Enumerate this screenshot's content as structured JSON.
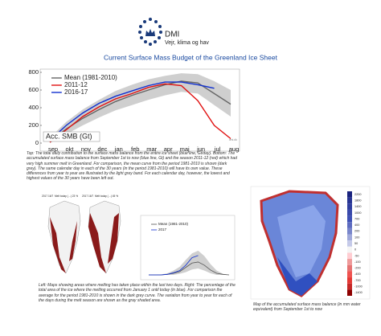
{
  "header": {
    "logo_text": "DMI",
    "tagline": "Vejr, klima og hav",
    "title": "Current Surface Mass Budget of the Greenland Ice Sheet"
  },
  "chart_data": [
    {
      "type": "line",
      "y_label": "Acc. SMB (Gt)",
      "watermark": "dmi.dk",
      "categories": [
        "sep",
        "okt",
        "nov",
        "dec",
        "jan",
        "feb",
        "mar",
        "apr",
        "maj",
        "jun",
        "jul",
        "aug"
      ],
      "ylim": [
        0,
        800
      ],
      "yticks": [
        0,
        200,
        400,
        600,
        800
      ],
      "band": {
        "color": "#cfcfcf",
        "low": [
          0,
          100,
          200,
          290,
          370,
          430,
          490,
          540,
          580,
          560,
          430,
          300
        ],
        "high": [
          60,
          240,
          380,
          490,
          590,
          660,
          720,
          760,
          790,
          780,
          700,
          600
        ]
      },
      "series": [
        {
          "name": "Mean (1981-2010)",
          "color": "#666666",
          "values": [
            20,
            160,
            280,
            380,
            470,
            540,
            600,
            660,
            700,
            680,
            560,
            440
          ]
        },
        {
          "name": "2011-12",
          "color": "#e01010",
          "values": [
            10,
            150,
            300,
            410,
            500,
            560,
            630,
            670,
            650,
            480,
            200,
            50
          ]
        },
        {
          "name": "2016-17",
          "color": "#1030d0",
          "values": [
            30,
            200,
            340,
            450,
            530,
            590,
            650,
            690,
            690,
            660,
            620,
            null
          ]
        }
      ]
    },
    {
      "type": "line",
      "ylim": [
        0,
        100
      ],
      "band": {
        "color": "#cfcfcf",
        "low": [
          0,
          0,
          0,
          0,
          0,
          2,
          5,
          10,
          12,
          8,
          3,
          0,
          0,
          0
        ],
        "high": [
          0,
          0,
          1,
          3,
          8,
          15,
          28,
          40,
          45,
          35,
          20,
          8,
          2,
          0
        ]
      },
      "series": [
        {
          "name": "Mean (1981-2010)",
          "color": "#555555",
          "values": [
            0,
            0,
            0,
            1,
            3,
            6,
            14,
            22,
            24,
            18,
            9,
            3,
            1,
            0
          ]
        },
        {
          "name": "2017",
          "color": "#1030d0",
          "values": [
            0,
            0,
            0,
            1,
            4,
            8,
            18,
            32,
            36,
            null,
            null,
            null,
            null,
            null
          ]
        }
      ]
    }
  ],
  "captions": {
    "top": "Top: The total daily contribution to the surface mass balance from the entire ice sheet (blue line, Gt/day). Bottom: The accumulated surface mass balance from September 1st to now (blue line, Gt) and the season 2011-12 (red) which had very high summer melt in Greenland. For comparison, the mean curve from the period 1981-2010 is shown (dark grey). The same calendar day in each of the 30 years (in the period 1981-2010) will have its own value. These differences from year to year are illustrated by the light grey band. For each calendar day, however, the lowest and highest values of the 30 years have been left out.",
    "melt": "Left: Maps showing areas where melting has taken place within the last two days. Right: The percentage of the total area of the ice where the melting occurred from January 1 until today (in blue). For comparison the average for the period 1981-2010 is shown in the dark grey curve. The variation from year to year for each of the days during the melt season are shown as the gray shaded area.",
    "map": "Map of the accumulated surface mass balance (in mm water equivalent) from September 1st to now"
  },
  "melt_maps": [
    {
      "date": "2017 16/7",
      "label": "Melt today (…) 23 %"
    },
    {
      "date": "2017 16/7",
      "label": "Melt today (…) 45 %"
    }
  ],
  "smb_map": {
    "colorbar_labels": [
      "2200",
      "1800",
      "1400",
      "1000",
      "700",
      "400",
      "200",
      "100",
      "50",
      "0",
      "-50",
      "-100",
      "-200",
      "-400",
      "-700",
      "-1000",
      "-1400"
    ]
  }
}
